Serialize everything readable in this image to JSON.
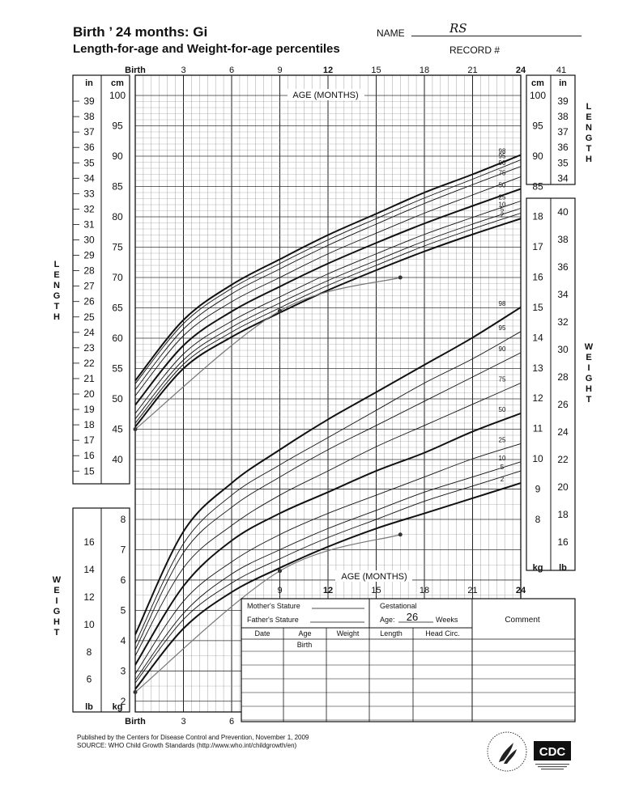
{
  "header": {
    "title_line1": "Birth ’ 24 months: Gi",
    "title_line2": "Length-for-age and Weight-for-age percentiles",
    "name_label": "NAME",
    "name_value": "RS",
    "record_label": "RECORD #"
  },
  "footer": {
    "line1": "Published by the Centers for Disease Control and Prevention, November 1, 2009",
    "line2": "SOURCE:  WHO Child Growth Standards (http://www.who.int/childgrowth/en)",
    "logo_text": "CDC"
  },
  "table": {
    "mothers_stature": "Mother's Stature",
    "fathers_stature": "Father's Stature",
    "gestational": "Gestational",
    "age_label": "Age:",
    "age_value": "26",
    "weeks": "Weeks",
    "comment": "Comment",
    "columns": [
      "Date",
      "Age",
      "Weight",
      "Length",
      "Head Circ."
    ],
    "first_age": "Birth"
  },
  "chart_data": [
    {
      "type": "line",
      "title": "Length-for-age",
      "xlabel": "AGE (MONTHS)",
      "ylabel": "LENGTH",
      "y_unit_left": "cm",
      "y_unit_right": "in",
      "x_ticks": [
        "Birth",
        "3",
        "6",
        "9",
        "12",
        "15",
        "18",
        "21",
        "24"
      ],
      "x_extra_tick": "41",
      "xlim": [
        0,
        24
      ],
      "ylim": [
        36,
        100
      ],
      "percentile_labels": [
        "98",
        "95",
        "90",
        "75",
        "50",
        "25",
        "10",
        "5",
        "2"
      ],
      "series": [
        {
          "name": "98",
          "x": [
            0,
            3,
            6,
            9,
            12,
            15,
            18,
            21,
            24
          ],
          "y": [
            53.0,
            63.0,
            68.8,
            73.0,
            77.0,
            80.5,
            84.0,
            87.0,
            90.2
          ]
        },
        {
          "name": "95",
          "x": [
            0,
            3,
            6,
            9,
            12,
            15,
            18,
            21,
            24
          ],
          "y": [
            52.5,
            62.4,
            68.2,
            72.3,
            76.2,
            79.7,
            83.1,
            86.2,
            89.4
          ]
        },
        {
          "name": "90",
          "x": [
            0,
            3,
            6,
            9,
            12,
            15,
            18,
            21,
            24
          ],
          "y": [
            51.5,
            61.5,
            67.3,
            71.4,
            75.3,
            78.8,
            82.2,
            85.3,
            88.3
          ]
        },
        {
          "name": "75",
          "x": [
            0,
            3,
            6,
            9,
            12,
            15,
            18,
            21,
            24
          ],
          "y": [
            50.5,
            60.4,
            66.0,
            70.0,
            73.9,
            77.3,
            80.6,
            83.6,
            86.6
          ]
        },
        {
          "name": "50",
          "x": [
            0,
            3,
            6,
            9,
            12,
            15,
            18,
            21,
            24
          ],
          "y": [
            49.0,
            58.8,
            64.4,
            68.5,
            72.3,
            75.7,
            78.9,
            81.8,
            84.6
          ]
        },
        {
          "name": "25",
          "x": [
            0,
            3,
            6,
            9,
            12,
            15,
            18,
            21,
            24
          ],
          "y": [
            47.6,
            57.4,
            62.8,
            66.8,
            70.6,
            73.9,
            77.1,
            79.9,
            82.6
          ]
        },
        {
          "name": "10",
          "x": [
            0,
            3,
            6,
            9,
            12,
            15,
            18,
            21,
            24
          ],
          "y": [
            46.7,
            56.4,
            61.8,
            65.8,
            69.5,
            72.8,
            76.0,
            78.8,
            81.4
          ]
        },
        {
          "name": "5",
          "x": [
            0,
            3,
            6,
            9,
            12,
            15,
            18,
            21,
            24
          ],
          "y": [
            46.0,
            55.7,
            61.0,
            65.0,
            68.7,
            72.0,
            75.2,
            78.0,
            80.6
          ]
        },
        {
          "name": "2",
          "x": [
            0,
            3,
            6,
            9,
            12,
            15,
            18,
            21,
            24
          ],
          "y": [
            45.4,
            55.0,
            60.2,
            64.2,
            67.9,
            71.2,
            74.3,
            77.1,
            79.7
          ]
        }
      ],
      "patient": {
        "x": [
          0,
          9,
          16.5
        ],
        "y": [
          45.0,
          64.5,
          70.0
        ]
      }
    },
    {
      "type": "line",
      "title": "Weight-for-age",
      "xlabel": "AGE (MONTHS)",
      "ylabel": "WEIGHT",
      "y_unit_left": "kg",
      "y_unit_right": "lb",
      "x_ticks": [
        "Birth",
        "3",
        "6",
        "9",
        "12",
        "15",
        "18",
        "21",
        "24"
      ],
      "xlim": [
        0,
        24
      ],
      "ylim": [
        1.7,
        18.6
      ],
      "percentile_labels": [
        "98",
        "95",
        "90",
        "75",
        "50",
        "25",
        "10",
        "5",
        "2"
      ],
      "series": [
        {
          "name": "98",
          "x": [
            0,
            3,
            6,
            9,
            12,
            15,
            18,
            21,
            24
          ],
          "y": [
            4.2,
            7.6,
            9.2,
            10.3,
            11.3,
            12.2,
            13.1,
            14.0,
            15.0
          ]
        },
        {
          "name": "95",
          "x": [
            0,
            3,
            6,
            9,
            12,
            15,
            18,
            21,
            24
          ],
          "y": [
            3.9,
            7.2,
            8.8,
            9.8,
            10.7,
            11.6,
            12.5,
            13.3,
            14.2
          ]
        },
        {
          "name": "90",
          "x": [
            0,
            3,
            6,
            9,
            12,
            15,
            18,
            21,
            24
          ],
          "y": [
            3.7,
            6.9,
            8.4,
            9.4,
            10.3,
            11.1,
            11.9,
            12.7,
            13.5
          ]
        },
        {
          "name": "75",
          "x": [
            0,
            3,
            6,
            9,
            12,
            15,
            18,
            21,
            24
          ],
          "y": [
            3.5,
            6.4,
            7.8,
            8.8,
            9.6,
            10.4,
            11.1,
            11.8,
            12.5
          ]
        },
        {
          "name": "50",
          "x": [
            0,
            3,
            6,
            9,
            12,
            15,
            18,
            21,
            24
          ],
          "y": [
            3.2,
            5.8,
            7.3,
            8.2,
            8.9,
            9.6,
            10.2,
            10.9,
            11.5
          ]
        },
        {
          "name": "25",
          "x": [
            0,
            3,
            6,
            9,
            12,
            15,
            18,
            21,
            24
          ],
          "y": [
            2.9,
            5.3,
            6.6,
            7.5,
            8.2,
            8.8,
            9.4,
            10.0,
            10.5
          ]
        },
        {
          "name": "10",
          "x": [
            0,
            3,
            6,
            9,
            12,
            15,
            18,
            21,
            24
          ],
          "y": [
            2.7,
            4.9,
            6.2,
            7.0,
            7.7,
            8.3,
            8.9,
            9.4,
            9.9
          ]
        },
        {
          "name": "5",
          "x": [
            0,
            3,
            6,
            9,
            12,
            15,
            18,
            21,
            24
          ],
          "y": [
            2.6,
            4.7,
            5.9,
            6.7,
            7.4,
            8.0,
            8.6,
            9.1,
            9.6
          ]
        },
        {
          "name": "2",
          "x": [
            0,
            3,
            6,
            9,
            12,
            15,
            18,
            21,
            24
          ],
          "y": [
            2.4,
            4.4,
            5.6,
            6.4,
            7.1,
            7.7,
            8.2,
            8.7,
            9.2
          ]
        }
      ],
      "patient": {
        "x": [
          0,
          9,
          16.5
        ],
        "y": [
          2.3,
          6.3,
          7.5
        ]
      }
    }
  ],
  "length_axis": {
    "cm_ticks": [
      100,
      95,
      90,
      85,
      80,
      75,
      70,
      65,
      60,
      55,
      50,
      45,
      40
    ],
    "in_ticks_left": [
      39,
      38,
      37,
      36,
      35,
      34,
      33,
      32,
      31,
      30,
      29,
      28,
      27,
      26,
      25,
      24,
      23,
      22,
      21,
      20,
      19,
      18,
      17,
      16,
      15
    ],
    "in_ticks_right": [
      39,
      38,
      37,
      36,
      35,
      34
    ]
  },
  "weight_axis": {
    "kg_ticks_right": [
      18,
      17,
      16,
      15,
      14,
      13,
      12,
      11,
      10,
      9,
      8
    ],
    "lb_ticks_right": [
      40,
      38,
      36,
      34,
      32,
      30,
      28,
      26,
      24,
      22,
      20,
      18,
      16
    ],
    "kg_ticks_left": [
      8,
      7,
      6,
      5,
      4,
      3,
      2
    ],
    "lb_ticks_left": [
      16,
      14,
      12,
      10,
      8,
      6
    ]
  },
  "side_labels": {
    "length": "LENGTH",
    "weight": "WEIGHT"
  }
}
